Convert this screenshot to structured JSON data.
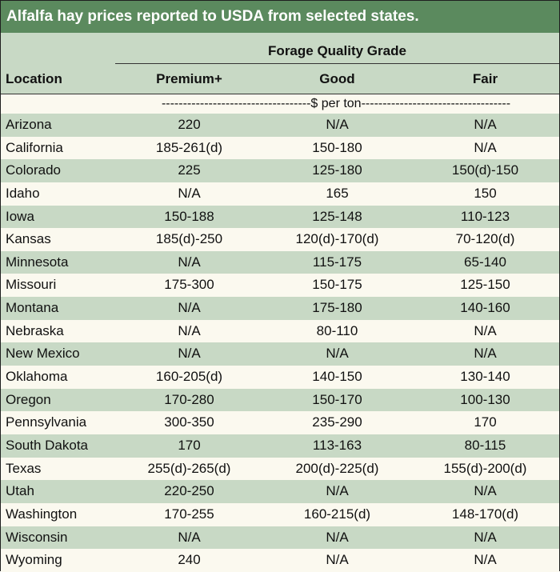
{
  "title": "Alfalfa hay prices reported to USDA from selected states.",
  "header": {
    "group_label": "Forage Quality Grade",
    "location_label": "Location",
    "columns": [
      "Premium+",
      "Good",
      "Fair"
    ]
  },
  "unit_row": "-----------------------------------$ per ton-----------------------------------",
  "rows": [
    {
      "location": "Arizona",
      "premium": "220",
      "good": "N/A",
      "fair": "N/A"
    },
    {
      "location": "California",
      "premium": "185-261(d)",
      "good": "150-180",
      "fair": "N/A"
    },
    {
      "location": "Colorado",
      "premium": "225",
      "good": "125-180",
      "fair": "150(d)-150"
    },
    {
      "location": "Idaho",
      "premium": "N/A",
      "good": "165",
      "fair": "150"
    },
    {
      "location": "Iowa",
      "premium": "150-188",
      "good": "125-148",
      "fair": "110-123"
    },
    {
      "location": "Kansas",
      "premium": "185(d)-250",
      "good": "120(d)-170(d)",
      "fair": "70-120(d)"
    },
    {
      "location": "Minnesota",
      "premium": "N/A",
      "good": "115-175",
      "fair": "65-140"
    },
    {
      "location": "Missouri",
      "premium": "175-300",
      "good": "150-175",
      "fair": "125-150"
    },
    {
      "location": "Montana",
      "premium": "N/A",
      "good": "175-180",
      "fair": "140-160"
    },
    {
      "location": "Nebraska",
      "premium": "N/A",
      "good": "80-110",
      "fair": "N/A"
    },
    {
      "location": "New Mexico",
      "premium": "N/A",
      "good": "N/A",
      "fair": "N/A"
    },
    {
      "location": "Oklahoma",
      "premium": "160-205(d)",
      "good": "140-150",
      "fair": "130-140"
    },
    {
      "location": "Oregon",
      "premium": "170-280",
      "good": "150-170",
      "fair": "100-130"
    },
    {
      "location": "Pennsylvania",
      "premium": "300-350",
      "good": "235-290",
      "fair": "170"
    },
    {
      "location": "South Dakota",
      "premium": "170",
      "good": "113-163",
      "fair": "80-115"
    },
    {
      "location": "Texas",
      "premium": "255(d)-265(d)",
      "good": "200(d)-225(d)",
      "fair": "155(d)-200(d)"
    },
    {
      "location": "Utah",
      "premium": "220-250",
      "good": "N/A",
      "fair": "N/A"
    },
    {
      "location": "Washington",
      "premium": "170-255",
      "good": "160-215(d)",
      "fair": "148-170(d)"
    },
    {
      "location": "Wisconsin",
      "premium": "N/A",
      "good": "N/A",
      "fair": "N/A"
    },
    {
      "location": "Wyoming",
      "premium": "240",
      "good": "N/A",
      "fair": "N/A"
    }
  ]
}
